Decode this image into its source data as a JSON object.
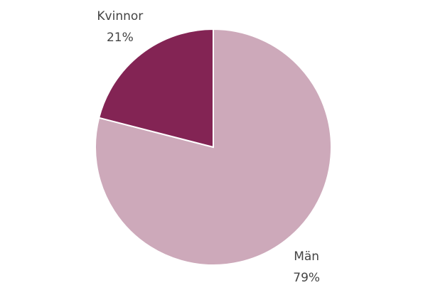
{
  "chart_data": {
    "type": "pie",
    "categories": [
      "Män",
      "Kvinnor"
    ],
    "values": [
      79,
      21
    ],
    "value_labels": [
      "79%",
      "21%"
    ],
    "colors": [
      "#cda9ba",
      "#832454"
    ]
  }
}
